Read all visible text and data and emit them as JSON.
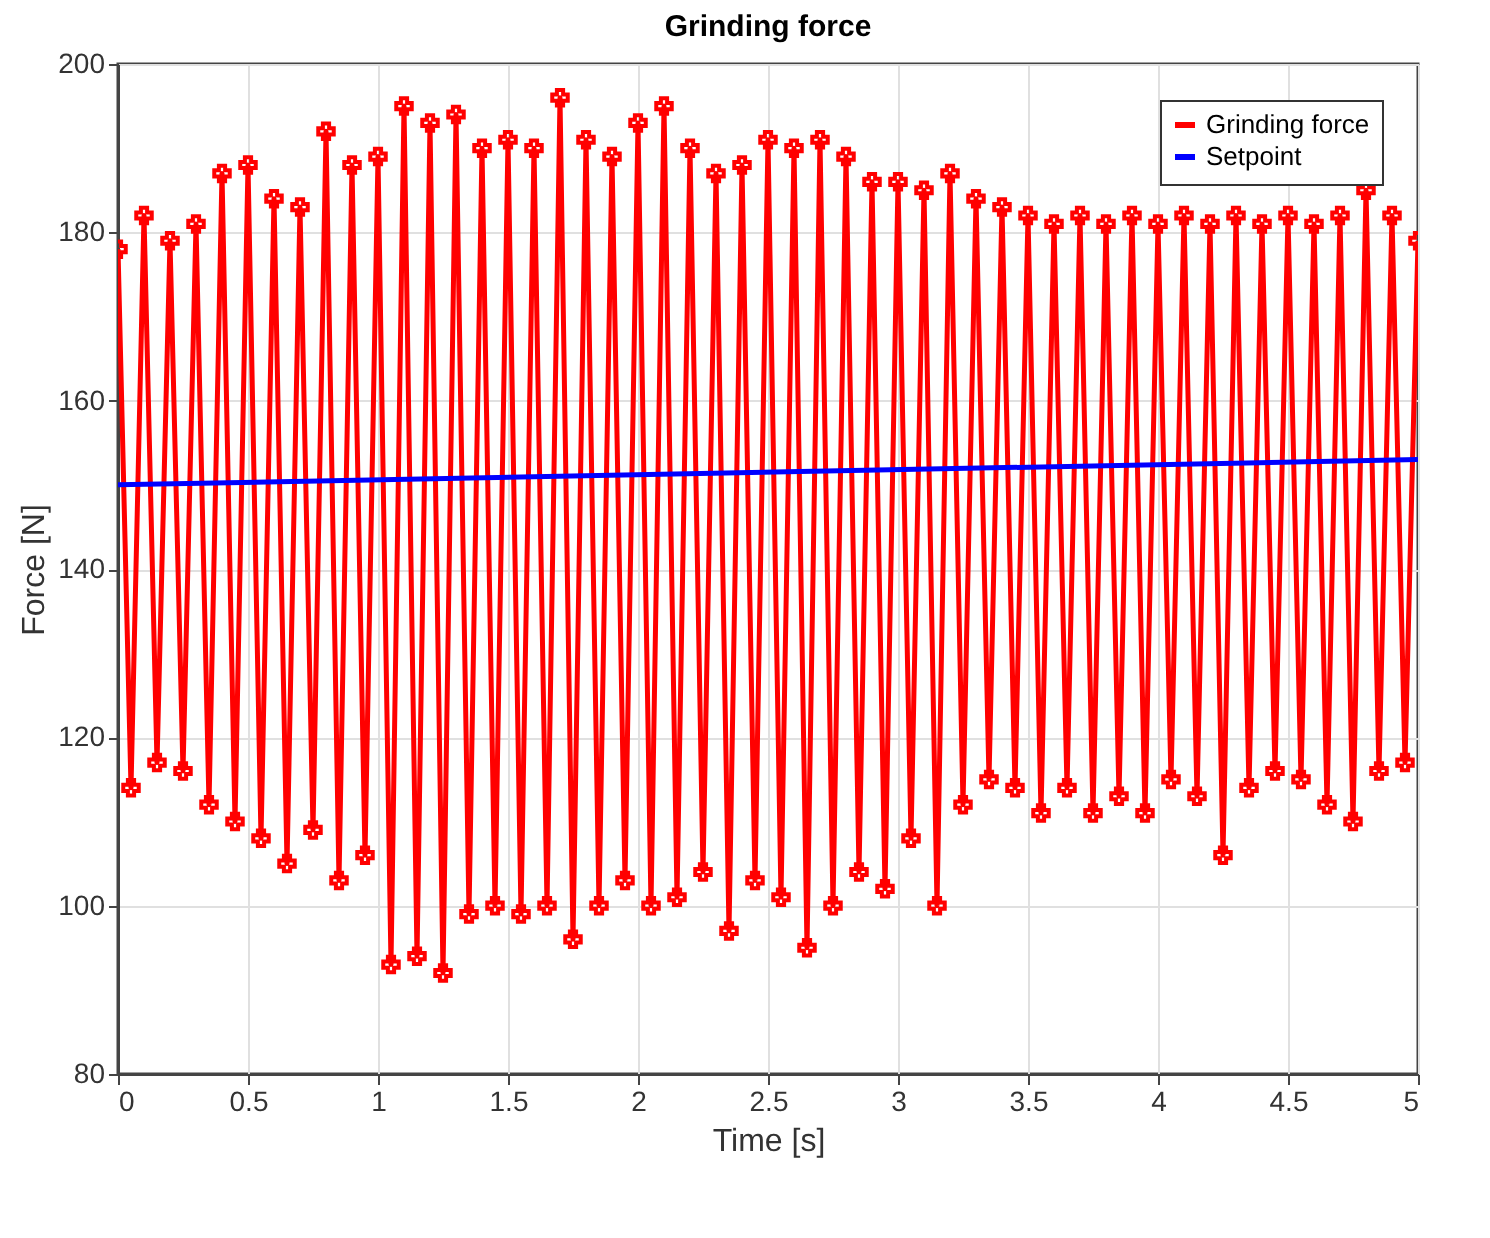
{
  "chart_data": {
    "type": "line",
    "title": "Grinding force",
    "xlabel": "Time [s]",
    "ylabel": "Force [N]",
    "xlim": [
      0,
      5
    ],
    "xticks": [
      0,
      0.5,
      1,
      1.5,
      2,
      2.5,
      3,
      3.5,
      4,
      4.5,
      5
    ],
    "ylim": [
      80,
      200
    ],
    "yticks": [
      80,
      100,
      120,
      140,
      160,
      180,
      200
    ],
    "grid": true,
    "legend": "top right",
    "line_style": "solid",
    "series": [
      {
        "name": "Grinding force",
        "color": "#ff0000",
        "marker": "cross",
        "x": [
          0,
          0.05,
          0.1,
          0.15,
          0.2,
          0.25,
          0.3,
          0.35,
          0.4,
          0.45,
          0.5,
          0.55,
          0.6,
          0.65,
          0.7,
          0.75,
          0.8,
          0.85,
          0.9,
          0.95,
          1,
          1.05,
          1.1,
          1.15,
          1.2,
          1.25,
          1.3,
          1.35,
          1.4,
          1.45,
          1.5,
          1.55,
          1.6,
          1.65,
          1.7,
          1.75,
          1.8,
          1.85,
          1.9,
          1.95,
          2,
          2.05,
          2.1,
          2.15,
          2.2,
          2.25,
          2.3,
          2.35,
          2.4,
          2.45,
          2.5,
          2.55,
          2.6,
          2.65,
          2.7,
          2.75,
          2.8,
          2.85,
          2.9,
          2.95,
          3,
          3.05,
          3.1,
          3.15,
          3.2,
          3.25,
          3.3,
          3.35,
          3.4,
          3.45,
          3.5,
          3.55,
          3.6,
          3.65,
          3.7,
          3.75,
          3.8,
          3.85,
          3.9,
          3.95,
          4,
          4.05,
          4.1,
          4.15,
          4.2,
          4.25,
          4.3,
          4.35,
          4.4,
          4.45,
          4.5,
          4.55,
          4.6,
          4.65,
          4.7,
          4.75,
          4.8,
          4.85,
          4.9,
          4.95,
          5
        ],
        "values": [
          178,
          114,
          182,
          117,
          179,
          116,
          181,
          112,
          187,
          110,
          188,
          108,
          184,
          105,
          183,
          109,
          192,
          103,
          188,
          106,
          189,
          93,
          195,
          94,
          193,
          92,
          194,
          99,
          190,
          100,
          191,
          99,
          190,
          100,
          196,
          96,
          191,
          100,
          189,
          103,
          193,
          100,
          195,
          101,
          190,
          104,
          187,
          97,
          188,
          103,
          191,
          101,
          190,
          95,
          191,
          100,
          189,
          104,
          186,
          102,
          186,
          108,
          185,
          100,
          187,
          112,
          184,
          115,
          183,
          114,
          182,
          111,
          181,
          114,
          182,
          111,
          181,
          113,
          182,
          111,
          181,
          115,
          182,
          113,
          181,
          106,
          182,
          114,
          181,
          116,
          182,
          115,
          181,
          112,
          182,
          110,
          185,
          116,
          182,
          117,
          179
        ]
      },
      {
        "name": "Setpoint",
        "color": "#0000ff",
        "marker": "none",
        "x": [
          0,
          5
        ],
        "values": [
          150,
          153
        ]
      }
    ]
  }
}
